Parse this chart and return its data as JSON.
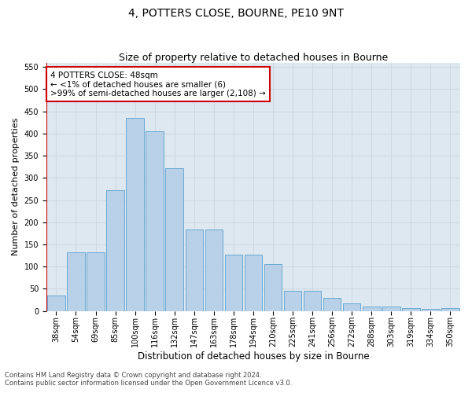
{
  "title": "4, POTTERS CLOSE, BOURNE, PE10 9NT",
  "subtitle": "Size of property relative to detached houses in Bourne",
  "xlabel": "Distribution of detached houses by size in Bourne",
  "ylabel": "Number of detached properties",
  "categories": [
    "38sqm",
    "54sqm",
    "69sqm",
    "85sqm",
    "100sqm",
    "116sqm",
    "132sqm",
    "147sqm",
    "163sqm",
    "178sqm",
    "194sqm",
    "210sqm",
    "225sqm",
    "241sqm",
    "256sqm",
    "272sqm",
    "288sqm",
    "303sqm",
    "319sqm",
    "334sqm",
    "350sqm"
  ],
  "values": [
    35,
    133,
    133,
    272,
    435,
    405,
    322,
    184,
    184,
    127,
    127,
    105,
    46,
    46,
    30,
    18,
    10,
    10,
    7,
    5,
    7
  ],
  "bar_color": "#b8d0e8",
  "bar_edge_color": "#6aaad4",
  "highlight_line_color": "#cc0000",
  "annotation_text": "4 POTTERS CLOSE: 48sqm\n← <1% of detached houses are smaller (6)\n>99% of semi-detached houses are larger (2,108) →",
  "annotation_box_color": "#ffffff",
  "annotation_box_edge": "#cc0000",
  "ylim": [
    0,
    560
  ],
  "yticks": [
    0,
    50,
    100,
    150,
    200,
    250,
    300,
    350,
    400,
    450,
    500,
    550
  ],
  "grid_color": "#d0d8e4",
  "bg_color": "#dde8f0",
  "fig_color": "#ffffff",
  "footer_line1": "Contains HM Land Registry data © Crown copyright and database right 2024.",
  "footer_line2": "Contains public sector information licensed under the Open Government Licence v3.0.",
  "title_fontsize": 10,
  "subtitle_fontsize": 9,
  "tick_fontsize": 7,
  "ylabel_fontsize": 8,
  "xlabel_fontsize": 8.5,
  "annotation_fontsize": 7.5,
  "footer_fontsize": 6
}
